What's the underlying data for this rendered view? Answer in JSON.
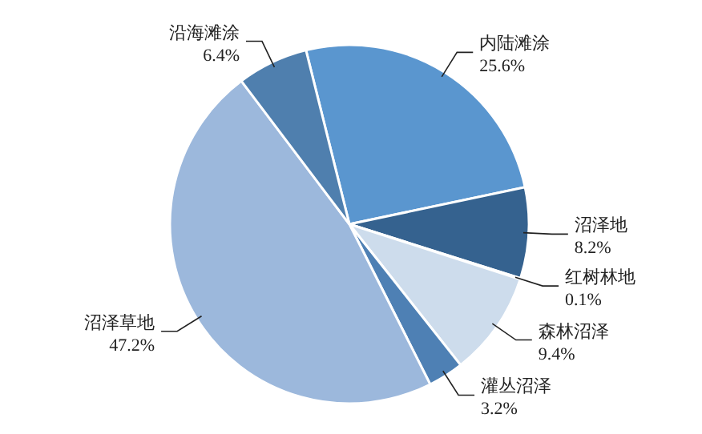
{
  "chart_data": {
    "type": "pie",
    "categories": [
      "内陆滩涂",
      "沼泽地",
      "红树林地",
      "森林沼泽",
      "灌丛沼泽",
      "沼泽草地",
      "沿海滩涂"
    ],
    "values": [
      25.6,
      8.2,
      0.1,
      9.4,
      3.2,
      47.2,
      6.4
    ],
    "value_labels": [
      "25.6%",
      "8.2%",
      "0.1%",
      "9.4%",
      "3.2%",
      "47.2%",
      "6.4%"
    ],
    "colors": [
      "#5a96cf",
      "#35628f",
      "#2a4f78",
      "#cddcec",
      "#4e80b4",
      "#9cb8dc",
      "#4f7fae"
    ]
  }
}
